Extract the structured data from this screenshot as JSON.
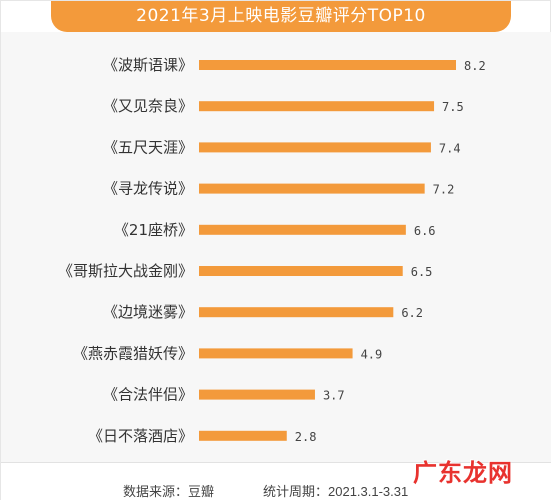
{
  "title": "2021年3月上映电影豆瓣评分TOP10",
  "footer": {
    "source": "数据来源：豆瓣",
    "period": "统计周期：2021.3.1-3.31"
  },
  "watermark": "广东龙网",
  "colors": {
    "bar": "#f39a3b",
    "title_bg": "#f39a3b",
    "watermark": "#e8322e"
  },
  "chart_data": {
    "type": "bar",
    "orientation": "horizontal",
    "categories": [
      "《波斯语课》",
      "《又见奈良》",
      "《五尺天涯》",
      "《寻龙传说》",
      "《21座桥》",
      "《哥斯拉大战金刚》",
      "《边境迷雾》",
      "《燕赤霞猎妖传》",
      "《合法伴侣》",
      "《日不落酒店》"
    ],
    "values": [
      8.2,
      7.5,
      7.4,
      7.2,
      6.6,
      6.5,
      6.2,
      4.9,
      3.7,
      2.8
    ],
    "value_labels": [
      "8.2",
      "7.5",
      "7.4",
      "7.2",
      "6.6",
      "6.5",
      "6.2",
      "4.9",
      "3.7",
      "2.8"
    ],
    "title": "2021年3月上映电影豆瓣评分TOP10",
    "xlabel": "",
    "ylabel": "",
    "xlim": [
      0,
      8.2
    ],
    "grid": false
  }
}
